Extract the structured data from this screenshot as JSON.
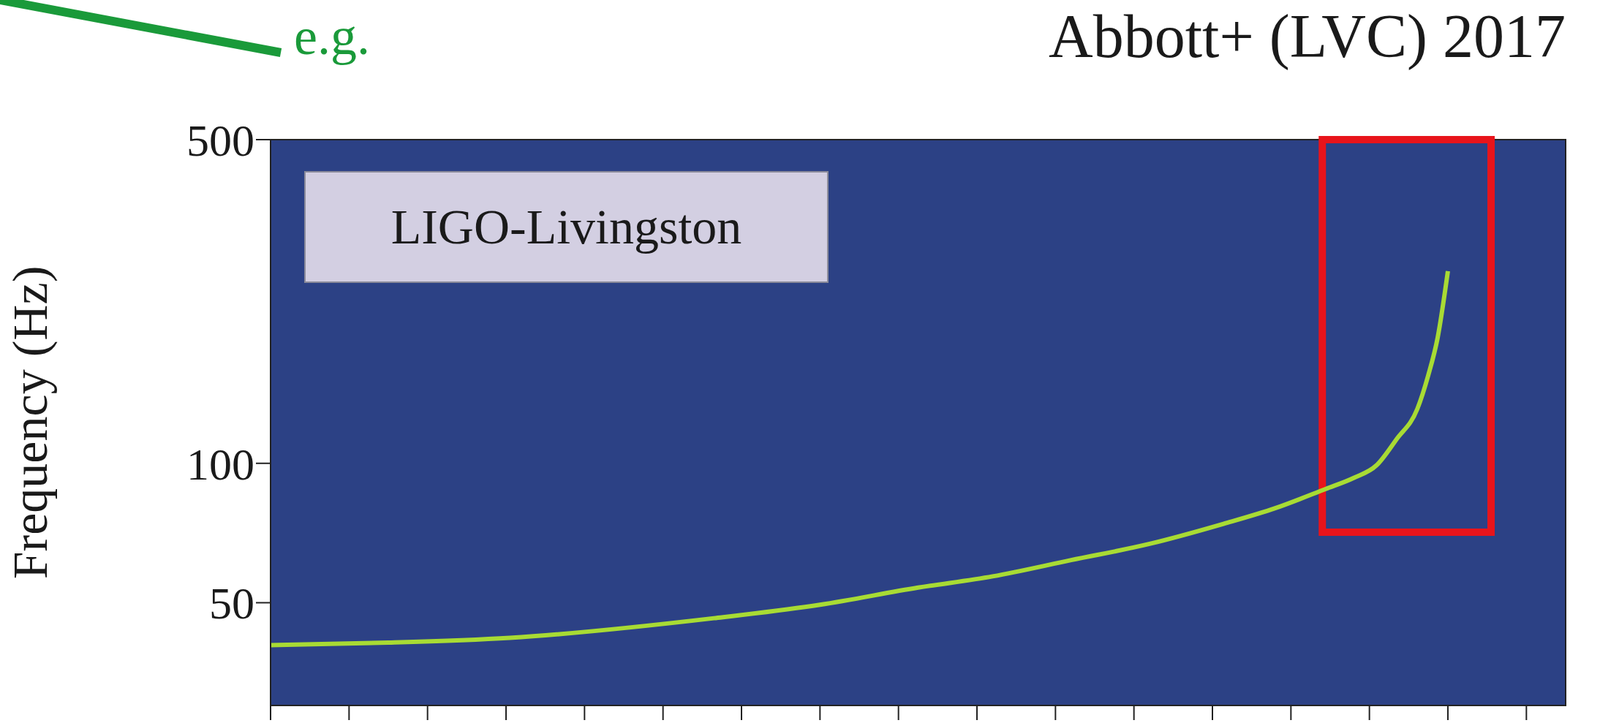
{
  "chart_data": {
    "type": "line",
    "title": "Abbott+ (LVC) 2017",
    "annotation": "e.g.",
    "panel_label": "LIGO-Livingston",
    "y_label": "Frequency (Hz)",
    "x": [
      -15,
      -13.5,
      -11.95,
      -9.35,
      -8,
      -6.75,
      -5.8,
      -4.8,
      -3.8,
      -2.86,
      -2.2,
      -1.56,
      -1.2,
      -0.91,
      -0.65,
      -0.39,
      -0.25,
      -0.13,
      0
    ],
    "values": [
      40.5,
      41,
      42,
      46.3,
      49.5,
      53.9,
      57,
      61.8,
      67,
      74,
      80,
      88,
      93,
      99,
      113,
      131,
      155,
      187,
      260
    ],
    "color": "#a8db34",
    "xlim": [
      -15,
      1.5
    ],
    "xticks": [
      -15,
      -14,
      -13,
      -12,
      -11,
      -10,
      -9,
      -8,
      -7,
      -6,
      -5,
      -4,
      -3,
      -2,
      -1,
      0,
      1
    ],
    "ylim": [
      30,
      500
    ],
    "yticks": [
      50,
      100,
      500
    ],
    "log": "y",
    "grid": false,
    "tick_labels": "y",
    "highlight": {
      "x": [
        -1.6,
        0.55
      ],
      "y": [
        71,
        500
      ],
      "color": "#e8141b"
    }
  }
}
